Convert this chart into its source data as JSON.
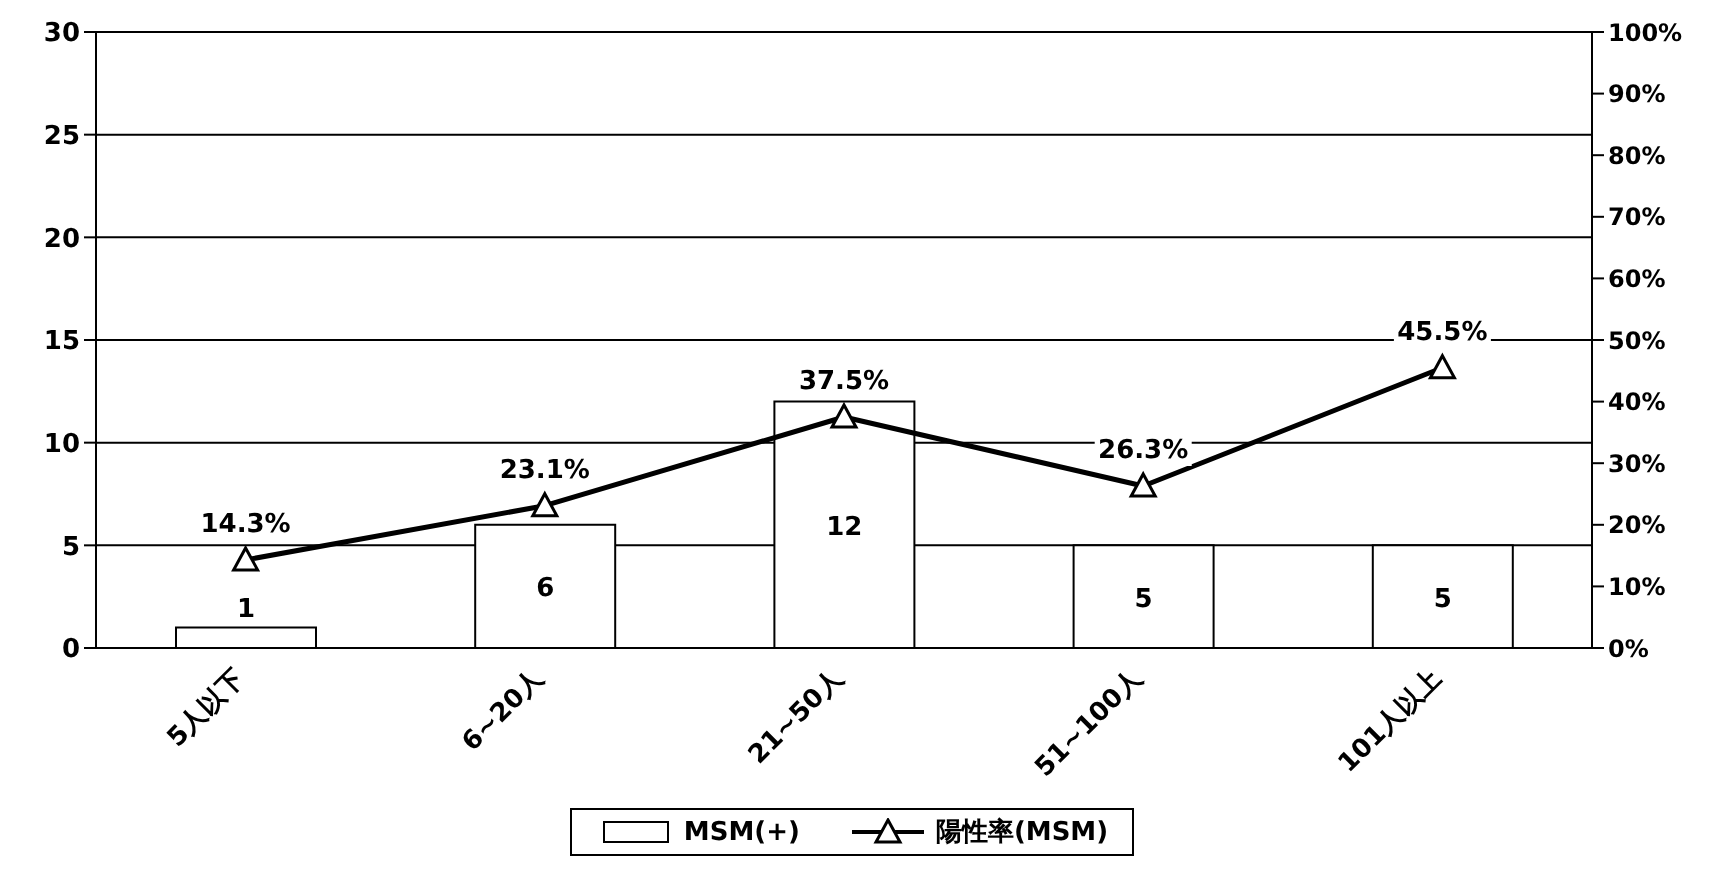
{
  "chart_data": {
    "type": "bar",
    "categories": [
      "5人以下",
      "6~20人",
      "21~50人",
      "51~100人",
      "101人以上"
    ],
    "series": [
      {
        "name": "MSM(+)",
        "color": "#ffffff",
        "values": [
          1,
          6,
          12,
          5,
          5
        ],
        "value_labels": [
          "1",
          "6",
          "12",
          "5",
          "5"
        ]
      },
      {
        "type": "line",
        "name": "陽性率(MSM)",
        "color": "#000000",
        "axis": "y2",
        "marker": "triangle",
        "values": [
          14.3,
          23.1,
          37.5,
          26.3,
          45.5
        ],
        "value_labels": [
          "14.3%",
          "23.1%",
          "37.5%",
          "26.3%",
          "45.5%"
        ]
      }
    ],
    "ylim": [
      0,
      30
    ],
    "yticks": [
      0,
      5,
      10,
      15,
      20,
      25,
      30
    ],
    "y2lim": [
      0,
      100
    ],
    "y2ticks": [
      {
        "value": 0,
        "label": "0%"
      },
      {
        "value": 10,
        "label": "10%"
      },
      {
        "value": 20,
        "label": "20%"
      },
      {
        "value": 30,
        "label": "30%"
      },
      {
        "value": 40,
        "label": "40%"
      },
      {
        "value": 50,
        "label": "50%"
      },
      {
        "value": 60,
        "label": "60%"
      },
      {
        "value": 70,
        "label": "70%"
      },
      {
        "value": 80,
        "label": "80%"
      },
      {
        "value": 90,
        "label": "90%"
      },
      {
        "value": 100,
        "label": "100%"
      }
    ],
    "grid": "y",
    "legend": "bottom"
  }
}
